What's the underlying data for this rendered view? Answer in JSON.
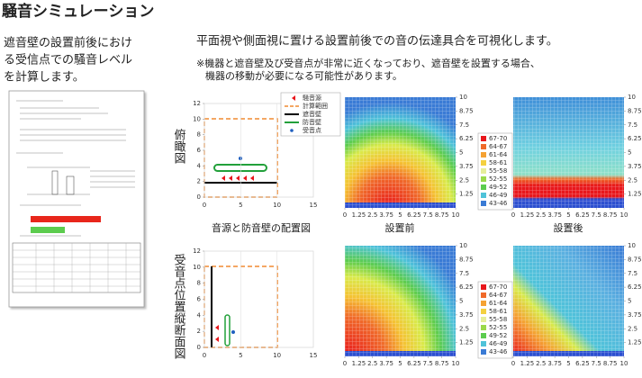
{
  "header": {
    "title": "騒音シミュレーション"
  },
  "intro": {
    "lines": [
      "遮音壁の設置前後におけ",
      "る受信点での騒音レベル",
      "を計算します。"
    ]
  },
  "description": {
    "text": "平面視や側面視に置ける設置前後での音の伝達具合を可視化します。",
    "note_lines": [
      "※機器と遮音壁及び受音点が非常に近くなっており、遮音壁を設置する場合、",
      "機器の移動が必要になる可能性があります。"
    ]
  },
  "row_labels": [
    "俯瞰図",
    "受音点位置縦断面図"
  ],
  "captions": [
    "音源と防音壁の配置図",
    "設置前",
    "設置後"
  ],
  "layout_charts": {
    "xlim": [
      0,
      15
    ],
    "xticks": [
      0,
      5,
      10,
      15
    ],
    "ylim": [
      0,
      12
    ],
    "yticks": [
      0,
      2,
      4,
      6,
      8,
      10,
      12
    ],
    "legend": [
      "騒音源",
      "計算範囲",
      "遮音壁",
      "防音壁",
      "受音点"
    ]
  },
  "heatmaps": {
    "lim": [
      0,
      10
    ],
    "xticks": [
      0,
      1.25,
      2.5,
      3.75,
      5,
      6.25,
      7.5,
      8.75,
      10
    ],
    "yticks": [
      1.25,
      2.5,
      3.75,
      5,
      6.25,
      7.5,
      8.75,
      10
    ],
    "legend": [
      "67-70",
      "64-67",
      "61-64",
      "58-61",
      "55-58",
      "52-55",
      "49-52",
      "46-49",
      "43-46"
    ],
    "colors": [
      "#e8161b",
      "#f06a2a",
      "#f5a233",
      "#f4d03f",
      "#e6ee9a",
      "#9ad94a",
      "#5ccc4e",
      "#4fc3d9",
      "#3a7bd5"
    ]
  }
}
